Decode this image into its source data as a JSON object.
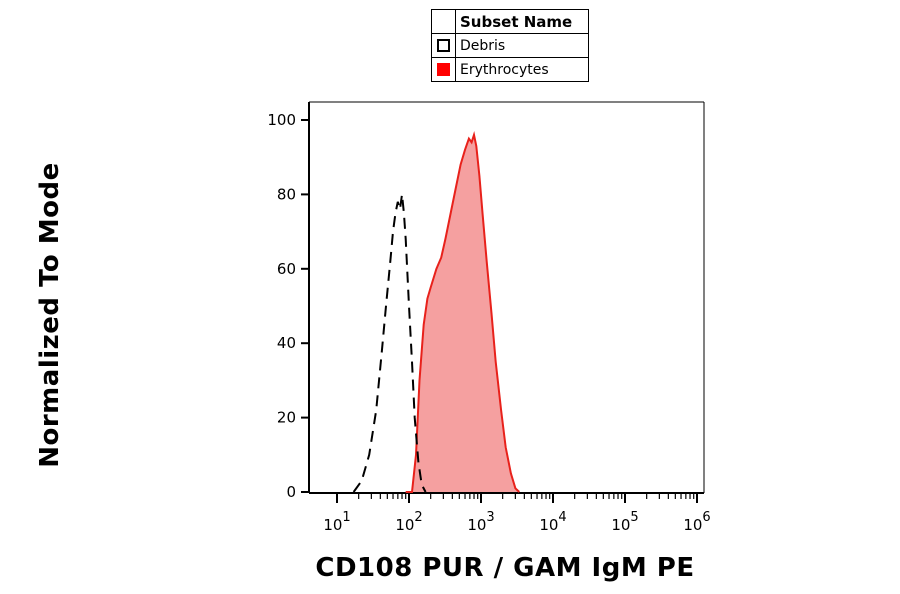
{
  "legend": {
    "title": "Subset Name",
    "items": [
      {
        "label": "Debris",
        "style": "dashed",
        "color": "#000000",
        "fill": "none"
      },
      {
        "label": "Erythrocytes",
        "style": "solid",
        "color": "#e8211b",
        "fill": "#f5a0a0"
      }
    ]
  },
  "chart_data": {
    "type": "area",
    "xlabel": "CD108 PUR / GAM IgM PE",
    "ylabel": "Normalized To Mode",
    "xscale": "log",
    "xlim": [
      10,
      1000000
    ],
    "ylim": [
      0,
      100
    ],
    "yticks": [
      0,
      20,
      40,
      60,
      80,
      100
    ],
    "xticks": [
      {
        "value": 10,
        "base": "10",
        "exp": "1"
      },
      {
        "value": 100,
        "base": "10",
        "exp": "2"
      },
      {
        "value": 1000,
        "base": "10",
        "exp": "3"
      },
      {
        "value": 10000,
        "base": "10",
        "exp": "4"
      },
      {
        "value": 100000,
        "base": "10",
        "exp": "5"
      },
      {
        "value": 1000000,
        "base": "10",
        "exp": "6"
      }
    ],
    "series": [
      {
        "name": "Debris",
        "x": [
          17,
          22,
          28,
          35,
          42,
          48,
          55,
          60,
          65,
          70,
          75,
          80,
          85,
          90,
          100,
          110,
          120,
          135,
          150,
          170
        ],
        "y": [
          0,
          3,
          10,
          22,
          38,
          50,
          62,
          70,
          75,
          78,
          76,
          80,
          75,
          68,
          50,
          35,
          20,
          8,
          2,
          0
        ]
      },
      {
        "name": "Erythrocytes",
        "x": [
          90,
          110,
          125,
          140,
          160,
          180,
          200,
          240,
          280,
          320,
          380,
          450,
          520,
          600,
          680,
          740,
          800,
          860,
          950,
          1050,
          1200,
          1400,
          1600,
          1900,
          2200,
          2600,
          3000,
          3400
        ],
        "y": [
          0,
          0,
          10,
          30,
          45,
          52,
          55,
          60,
          63,
          68,
          75,
          82,
          88,
          92,
          95,
          94,
          96,
          93,
          85,
          75,
          62,
          48,
          35,
          22,
          12,
          5,
          1,
          0
        ]
      }
    ]
  }
}
